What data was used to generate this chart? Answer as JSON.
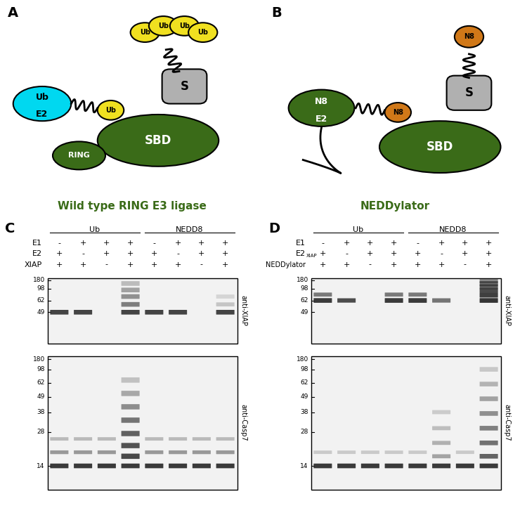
{
  "panel_labels": [
    "A",
    "B",
    "C",
    "D"
  ],
  "title_A": "Wild type RING E3 ligase",
  "title_B": "NEDDylator",
  "dark_green": "#3a6b18",
  "medium_green": "#3a6b18",
  "yellow": "#f0e020",
  "cyan": "#00d8f0",
  "orange": "#d07818",
  "gray_box": "#b0b0b0",
  "gel_bg_light": "#f5f5f5",
  "gel_bg_dark": "#e0e0e0"
}
